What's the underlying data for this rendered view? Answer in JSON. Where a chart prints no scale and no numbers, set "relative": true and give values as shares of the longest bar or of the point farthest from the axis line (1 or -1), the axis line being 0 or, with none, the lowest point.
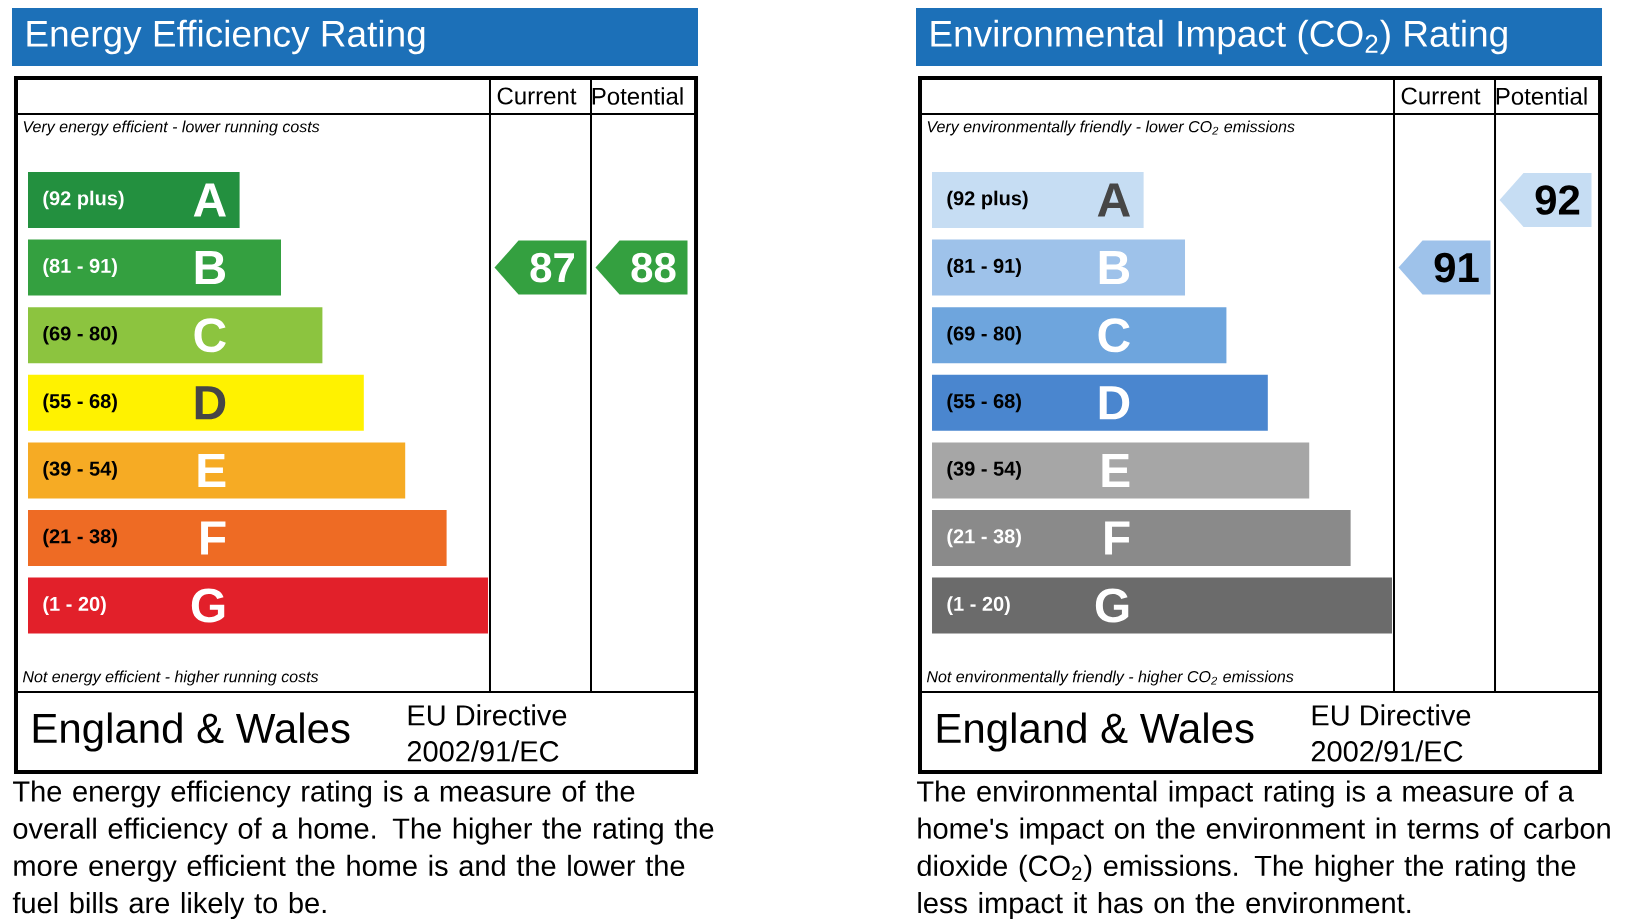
{
  "chart_data": [
    {
      "type": "bar",
      "orientation": "horizontal",
      "relative": true,
      "title": "Energy Efficiency Rating",
      "categories": [
        "(92 plus)",
        "(81 - 91)",
        "(69 - 80)",
        "(55 - 68)",
        "(39 - 54)",
        "(21 - 38)",
        "(1 - 20)"
      ],
      "values": [
        0.46,
        0.55,
        0.64,
        0.73,
        0.82,
        0.91,
        1
      ],
      "colors": [
        "#23903f",
        "#34a040",
        "#8cc43f",
        "#fff200",
        "#f6ab24",
        "#ee6b24",
        "#e2202a"
      ],
      "annotations": [
        "Very energy efficient - lower running costs",
        "Not energy efficient - higher running costs",
        "England & Wales",
        "EU Directive",
        "2002/91/EC",
        "The energy efficiency rating is a measure of the overall efficiency of a home. The higher the rating the more energy efficient the home is and the lower the fuel bills are likely to be."
      ]
    },
    {
      "type": "heatmap",
      "categories": [
        "Current",
        "Potential"
      ],
      "y_categories": [
        "A",
        "B",
        "C",
        "D",
        "E",
        "F",
        "G"
      ],
      "cells": [
        [
          null,
          null
        ],
        [
          87,
          88
        ],
        [
          null,
          null
        ],
        [
          null,
          null
        ],
        [
          null,
          null
        ],
        [
          null,
          null
        ],
        [
          null,
          null
        ]
      ],
      "data_labels": true
    },
    {
      "type": "bar",
      "orientation": "horizontal",
      "relative": true,
      "title": "Environmental Impact (CO$_{2}$) Rating",
      "categories": [
        "(92 plus)",
        "(81 - 91)",
        "(69 - 80)",
        "(55 - 68)",
        "(39 - 54)",
        "(21 - 38)",
        "(1 - 20)"
      ],
      "values": [
        0.46,
        0.55,
        0.64,
        0.73,
        0.82,
        0.91,
        1
      ],
      "colors": [
        "#c6ddf3",
        "#9ec2ea",
        "#6ea5dd",
        "#4a86cf",
        "#a6a6a6",
        "#8a8a8a",
        "#6b6b6b"
      ],
      "annotations": [
        "Very environmentally friendly - lower CO$_{2}$ emissions",
        "Not environmentally friendly - higher CO$_{2}$ emissions",
        "England & Wales",
        "EU Directive",
        "2002/91/EC",
        "The environmental impact rating is a measure of a home's impact on the environment in terms of carbon dioxide (CO$_{2}$) emissions. The higher the rating the less impact it has on the environment."
      ]
    },
    {
      "type": "heatmap",
      "categories": [
        "Current",
        "Potential"
      ],
      "y_categories": [
        "A",
        "B",
        "C",
        "D",
        "E",
        "F",
        "G"
      ],
      "cells": [
        [
          null,
          92
        ],
        [
          91,
          null
        ],
        [
          null,
          null
        ],
        [
          null,
          null
        ],
        [
          null,
          null
        ],
        [
          null,
          null
        ],
        [
          null,
          null
        ]
      ],
      "data_labels": true
    }
  ]
}
